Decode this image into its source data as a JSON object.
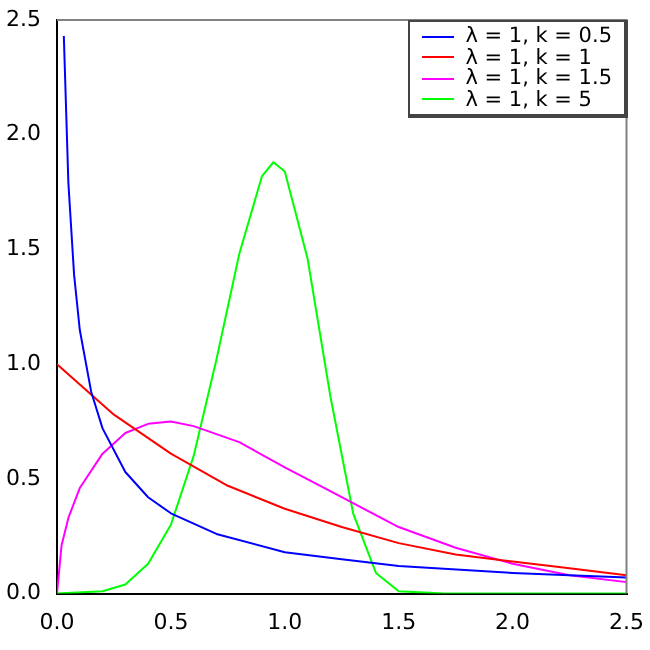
{
  "chart_data": {
    "type": "line",
    "xlim": [
      0,
      2.5
    ],
    "ylim": [
      0,
      2.5
    ],
    "xticks": [
      {
        "value": 0,
        "label": "0.0"
      },
      {
        "value": 0.5,
        "label": "0.5"
      },
      {
        "value": 1,
        "label": "1.0"
      },
      {
        "value": 1.5,
        "label": "1.5"
      },
      {
        "value": 2,
        "label": "2.0"
      },
      {
        "value": 2.5,
        "label": "2.5"
      }
    ],
    "yticks": [
      {
        "value": 0,
        "label": "0.0"
      },
      {
        "value": 0.5,
        "label": "0.5"
      },
      {
        "value": 1,
        "label": "1.0"
      },
      {
        "value": 1.5,
        "label": "1.5"
      },
      {
        "value": 2,
        "label": "2.0"
      },
      {
        "value": 2.5,
        "label": "2.5"
      }
    ],
    "grid": false,
    "legend": "top right",
    "marker": "none",
    "line_style": "solid",
    "series": [
      {
        "name": "λ = 1, k = 0.5",
        "color": "#0000ff",
        "x": [
          0.03,
          0.05,
          0.075,
          0.1,
          0.15,
          0.2,
          0.3,
          0.4,
          0.5,
          0.7,
          1,
          1.25,
          1.5,
          2,
          2.5
        ],
        "values": [
          2.43,
          1.79,
          1.39,
          1.15,
          0.88,
          0.72,
          0.53,
          0.42,
          0.35,
          0.26,
          0.18,
          0.15,
          0.12,
          0.09,
          0.07
        ]
      },
      {
        "name": "λ = 1, k = 1",
        "color": "#ff0000",
        "x": [
          0,
          0.25,
          0.5,
          0.75,
          1,
          1.25,
          1.5,
          1.75,
          2,
          2.25,
          2.5
        ],
        "values": [
          1,
          0.78,
          0.61,
          0.47,
          0.37,
          0.29,
          0.22,
          0.17,
          0.14,
          0.11,
          0.08
        ]
      },
      {
        "name": "λ = 1, k = 1.5",
        "color": "#ff00ff",
        "x": [
          0,
          0.02,
          0.05,
          0.1,
          0.2,
          0.3,
          0.4,
          0.5,
          0.6,
          0.8,
          1,
          1.25,
          1.5,
          1.75,
          2,
          2.25,
          2.5
        ],
        "values": [
          0,
          0.21,
          0.33,
          0.46,
          0.61,
          0.7,
          0.74,
          0.75,
          0.73,
          0.66,
          0.55,
          0.42,
          0.29,
          0.2,
          0.13,
          0.08,
          0.05
        ]
      },
      {
        "name": "λ = 1, k = 5",
        "color": "#00ff00",
        "x": [
          0,
          0.2,
          0.3,
          0.4,
          0.5,
          0.6,
          0.7,
          0.8,
          0.9,
          0.95,
          1,
          1.1,
          1.2,
          1.3,
          1.4,
          1.5,
          1.7,
          2.5
        ],
        "values": [
          0,
          0.01,
          0.04,
          0.13,
          0.3,
          0.6,
          1.02,
          1.48,
          1.82,
          1.88,
          1.84,
          1.46,
          0.86,
          0.35,
          0.09,
          0.01,
          0,
          0
        ]
      }
    ]
  }
}
